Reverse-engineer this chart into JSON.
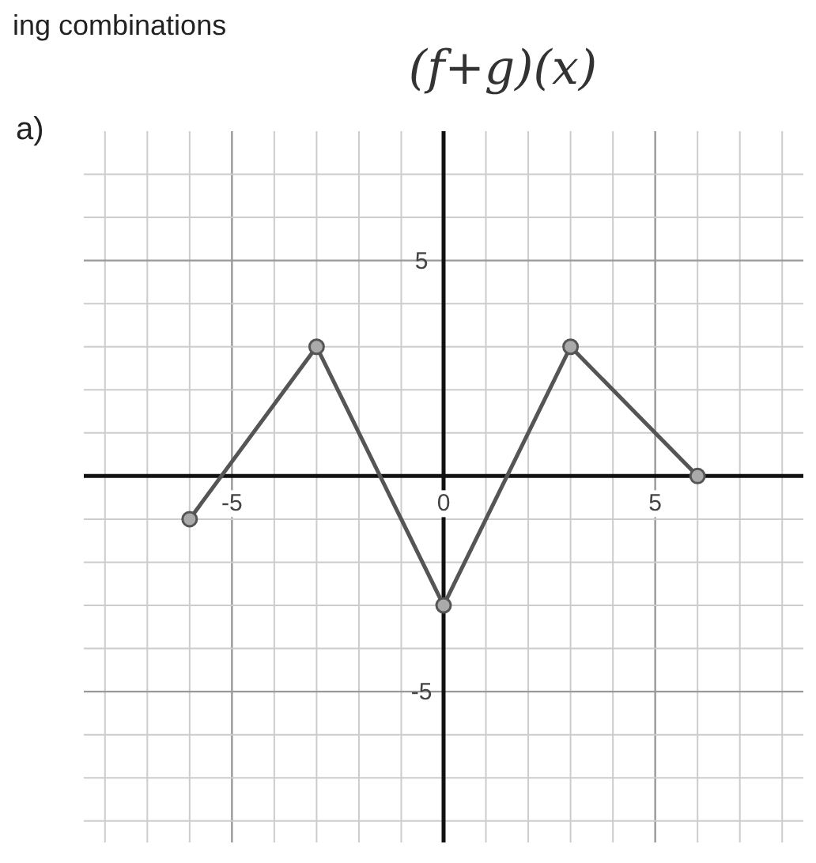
{
  "chart_data": {
    "type": "line",
    "title": "(f+g)(x)",
    "annotations": [
      "ing combinations",
      "a)"
    ],
    "x": [
      -6,
      -3,
      0,
      3,
      6
    ],
    "series": [
      {
        "color": "#555555",
        "values": [
          -1,
          3,
          -3,
          3,
          0
        ]
      }
    ],
    "xlim": [
      -8.5,
      8.5
    ],
    "ylim": [
      -8.5,
      8
    ],
    "xticks": [
      {
        "value": -8,
        "label": null
      },
      {
        "value": -7,
        "label": null
      },
      {
        "value": -6,
        "label": null
      },
      -5,
      {
        "value": -4,
        "label": null
      },
      {
        "value": -3,
        "label": null
      },
      {
        "value": -2,
        "label": null
      },
      {
        "value": -1,
        "label": null
      },
      0,
      {
        "value": 1,
        "label": null
      },
      {
        "value": 2,
        "label": null
      },
      {
        "value": 3,
        "label": null
      },
      {
        "value": 4,
        "label": null
      },
      5,
      {
        "value": 6,
        "label": null
      },
      {
        "value": 7,
        "label": null
      },
      {
        "value": 8,
        "label": null
      }
    ],
    "yticks": [
      {
        "value": -8,
        "label": null
      },
      {
        "value": -7,
        "label": null
      },
      {
        "value": -6,
        "label": null
      },
      -5,
      {
        "value": -4,
        "label": null
      },
      {
        "value": -3,
        "label": null
      },
      {
        "value": -2,
        "label": null
      },
      {
        "value": -1,
        "label": null
      },
      {
        "value": 1,
        "label": null
      },
      {
        "value": 2,
        "label": null
      },
      {
        "value": 3,
        "label": null
      },
      {
        "value": 4,
        "label": null
      },
      5,
      {
        "value": 6,
        "label": null
      },
      {
        "value": 7,
        "label": null
      }
    ],
    "grid": true,
    "marker": "circle",
    "line_style": "solid"
  }
}
